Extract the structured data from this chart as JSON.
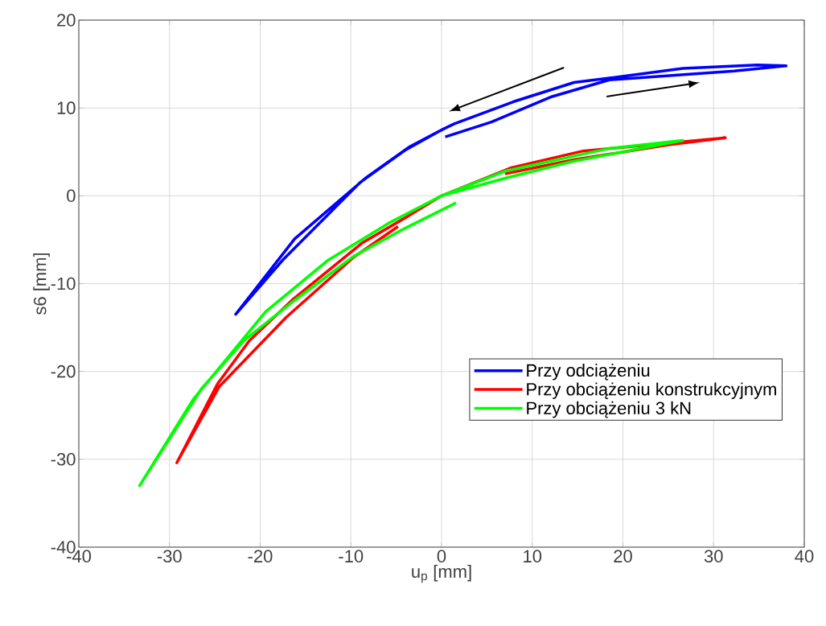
{
  "chart_data": {
    "type": "line",
    "xlabel": "u$_{p}$ [mm]",
    "ylabel": "s6 [mm]",
    "xlim": [
      -40,
      40
    ],
    "ylim": [
      -40,
      20
    ],
    "xticks": [
      -40,
      -30,
      -20,
      -10,
      0,
      10,
      20,
      30,
      40
    ],
    "yticks": [
      -40,
      -30,
      -20,
      -10,
      0,
      10,
      20
    ],
    "grid": true,
    "legend": "bottom right",
    "line_style": "solid",
    "marker": "none",
    "series": [
      {
        "name": "Przy odciążeniu",
        "color": "#0000ff",
        "x": [
          0.4,
          5.5,
          12.2,
          18.5,
          32.3,
          38,
          34.8,
          26.6,
          18.5,
          14.6,
          7.9,
          1.4,
          0.2,
          -3.5,
          -8.4,
          -16.2,
          -22.7,
          -17.5,
          -9,
          -4,
          0
        ],
        "values": [
          6.7,
          8.4,
          11.3,
          13.2,
          14.2,
          14.8,
          14.9,
          14.5,
          13.4,
          12.9,
          10.7,
          8.2,
          7.6,
          5.6,
          2.0,
          -4.9,
          -13.5,
          -7.3,
          1.5,
          5.2,
          7.5
        ]
      },
      {
        "name": "Przy obciążeniu konstrukcyjnym",
        "color": "#ff0000",
        "x": [
          -4.8,
          -9.7,
          -17.1,
          -24.5,
          -29.2,
          -24.7,
          -21.2,
          -16.5,
          -8.8,
          -4,
          0,
          7.7,
          15.6,
          31.3,
          25,
          14.6,
          7
        ],
        "values": [
          -3.5,
          -7.0,
          -13.8,
          -21.7,
          -30.4,
          -21.4,
          -16.5,
          -11.9,
          -5.4,
          -2.5,
          0,
          3.2,
          5.1,
          6.6,
          5.8,
          4.1,
          2.5
        ]
      },
      {
        "name": "Przy obciążeniu 3 kN",
        "color": "#00ff00",
        "x": [
          1.6,
          -4.6,
          -9.7,
          -16.2,
          -21.8,
          -26.5,
          -33.3,
          -27.4,
          -19.4,
          -12.6,
          -5.8,
          0,
          7,
          18.5,
          26.6,
          14.4,
          7,
          0
        ],
        "values": [
          -0.8,
          -4.0,
          -6.9,
          -11.9,
          -16.5,
          -22,
          -33,
          -23.2,
          -13.2,
          -7.4,
          -3.1,
          0,
          2.8,
          5.4,
          6.3,
          3.9,
          2,
          0
        ]
      }
    ]
  }
}
